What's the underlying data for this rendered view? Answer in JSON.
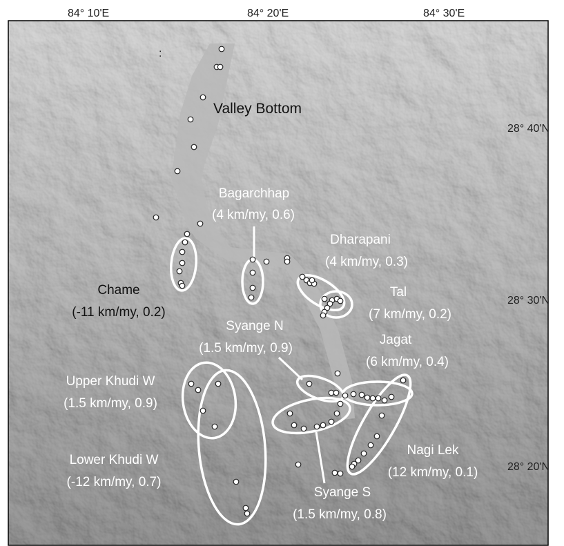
{
  "map": {
    "longitude_labels": [
      "84° 10'E",
      "84° 20'E",
      "84° 30'E"
    ],
    "latitude_labels": [
      "28° 40'N",
      "28° 30'N",
      "28° 20'N"
    ],
    "valley_label": "Valley Bottom",
    "regions": [
      {
        "id": "chame",
        "name": "Chame",
        "stats": "(-11 km/my, 0.2)"
      },
      {
        "id": "bagarchhap",
        "name": "Bagarchhap",
        "stats": "(4 km/my, 0.6)"
      },
      {
        "id": "dharapani",
        "name": "Dharapani",
        "stats": "(4 km/my, 0.3)"
      },
      {
        "id": "tal",
        "name": "Tal",
        "stats": "(7 km/my, 0.2)"
      },
      {
        "id": "syange-n",
        "name": "Syange N",
        "stats": "(1.5 km/my, 0.9)"
      },
      {
        "id": "jagat",
        "name": "Jagat",
        "stats": "(6 km/my, 0.4)"
      },
      {
        "id": "upper-khudi-w",
        "name": "Upper Khudi W",
        "stats": "(1.5 km/my, 0.9)"
      },
      {
        "id": "lower-khudi-w",
        "name": "Lower Khudi W",
        "stats": "(-12 km/my, 0.7)"
      },
      {
        "id": "nagi-lek",
        "name": "Nagi Lek",
        "stats": "(12 km/my, 0.1)"
      },
      {
        "id": "syange-s",
        "name": "Syange S",
        "stats": "(1.5 km/my, 0.8)"
      }
    ],
    "colors": {
      "ellipse": "#ffffff",
      "valley": "#b8b8b8",
      "point_fill": "#ffffff",
      "point_stroke": "#222222"
    }
  }
}
